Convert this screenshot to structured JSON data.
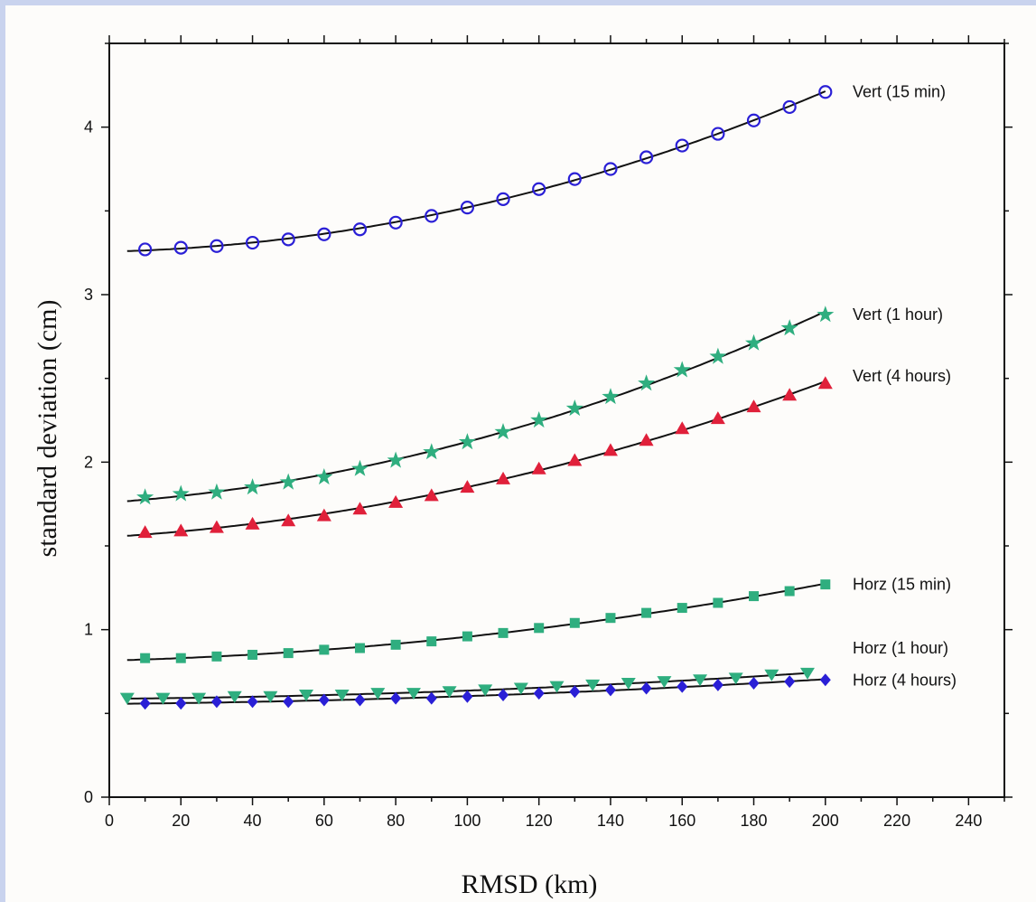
{
  "chart_data": {
    "type": "line",
    "xlabel": "RMSD (km)",
    "ylabel": "standard deviation (cm)",
    "xlim": [
      0,
      250
    ],
    "ylim": [
      0,
      4.5
    ],
    "xticks": [
      "0",
      "20",
      "40",
      "60",
      "80",
      "100",
      "120",
      "140",
      "160",
      "180",
      "200",
      "220",
      "240"
    ],
    "yticks": [
      "0",
      "1",
      "2",
      "3",
      "4"
    ],
    "grid": false,
    "series": [
      {
        "name": "Vert (15 min)",
        "marker": "circle-open",
        "color": "#2a1fd6",
        "x": [
          10,
          20,
          30,
          40,
          50,
          60,
          70,
          80,
          90,
          100,
          110,
          120,
          130,
          140,
          150,
          160,
          170,
          180,
          190,
          200
        ],
        "y": [
          3.27,
          3.28,
          3.29,
          3.31,
          3.33,
          3.36,
          3.39,
          3.43,
          3.47,
          3.52,
          3.57,
          3.63,
          3.69,
          3.75,
          3.82,
          3.89,
          3.96,
          4.04,
          4.12,
          4.21
        ]
      },
      {
        "name": "Vert (1 hour)",
        "marker": "star",
        "color": "#2fae7f",
        "x": [
          10,
          20,
          30,
          40,
          50,
          60,
          70,
          80,
          90,
          100,
          110,
          120,
          130,
          140,
          150,
          160,
          170,
          180,
          190,
          200
        ],
        "y": [
          1.79,
          1.81,
          1.82,
          1.85,
          1.88,
          1.91,
          1.96,
          2.01,
          2.06,
          2.12,
          2.18,
          2.25,
          2.32,
          2.39,
          2.47,
          2.55,
          2.63,
          2.71,
          2.8,
          2.88
        ]
      },
      {
        "name": "Vert (4 hours)",
        "marker": "triangle",
        "color": "#e0203a",
        "x": [
          10,
          20,
          30,
          40,
          50,
          60,
          70,
          80,
          90,
          100,
          110,
          120,
          130,
          140,
          150,
          160,
          170,
          180,
          190,
          200
        ],
        "y": [
          1.58,
          1.59,
          1.61,
          1.63,
          1.65,
          1.68,
          1.72,
          1.76,
          1.8,
          1.85,
          1.9,
          1.96,
          2.01,
          2.07,
          2.13,
          2.2,
          2.26,
          2.33,
          2.4,
          2.47
        ]
      },
      {
        "name": "Horz (15 min)",
        "marker": "square",
        "color": "#2fae7f",
        "x": [
          10,
          20,
          30,
          40,
          50,
          60,
          70,
          80,
          90,
          100,
          110,
          120,
          130,
          140,
          150,
          160,
          170,
          180,
          190,
          200
        ],
        "y": [
          0.83,
          0.83,
          0.84,
          0.85,
          0.86,
          0.88,
          0.89,
          0.91,
          0.93,
          0.96,
          0.98,
          1.01,
          1.04,
          1.07,
          1.1,
          1.13,
          1.16,
          1.2,
          1.23,
          1.27
        ]
      },
      {
        "name": "Horz (1 hour)",
        "marker": "triangle-down",
        "color": "#2fae7f",
        "x": [
          5,
          15,
          25,
          35,
          45,
          55,
          65,
          75,
          85,
          95,
          105,
          115,
          125,
          135,
          145,
          155,
          165,
          175,
          185,
          195
        ],
        "y": [
          0.59,
          0.59,
          0.59,
          0.6,
          0.6,
          0.61,
          0.61,
          0.62,
          0.62,
          0.63,
          0.64,
          0.65,
          0.66,
          0.67,
          0.68,
          0.69,
          0.7,
          0.71,
          0.73,
          0.74
        ]
      },
      {
        "name": "Horz (4 hours)",
        "marker": "diamond",
        "color": "#2a1fd6",
        "x": [
          10,
          20,
          30,
          40,
          50,
          60,
          70,
          80,
          90,
          100,
          110,
          120,
          130,
          140,
          150,
          160,
          170,
          180,
          190,
          200
        ],
        "y": [
          0.56,
          0.56,
          0.57,
          0.57,
          0.57,
          0.58,
          0.58,
          0.59,
          0.59,
          0.6,
          0.61,
          0.62,
          0.63,
          0.64,
          0.65,
          0.66,
          0.67,
          0.68,
          0.69,
          0.7
        ]
      }
    ]
  }
}
